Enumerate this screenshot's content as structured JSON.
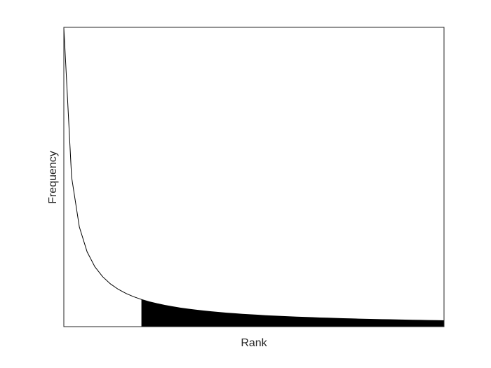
{
  "chart_data": {
    "type": "area",
    "title": "",
    "xlabel": "Rank",
    "ylabel": "Frequency",
    "xlim": [
      1,
      50
    ],
    "ylim": [
      0,
      1
    ],
    "grid": false,
    "tick_labels": false,
    "x": [
      1,
      2,
      3,
      4,
      5,
      6,
      7,
      8,
      9,
      10,
      11,
      12,
      13,
      14,
      15,
      16,
      17,
      18,
      19,
      20,
      21,
      22,
      23,
      24,
      25,
      26,
      27,
      28,
      29,
      30,
      31,
      32,
      33,
      34,
      35,
      36,
      37,
      38,
      39,
      40,
      41,
      42,
      43,
      44,
      45,
      46,
      47,
      48,
      49,
      50
    ],
    "series": [
      {
        "values": [
          1.0,
          0.5,
          0.333,
          0.25,
          0.2,
          0.167,
          0.143,
          0.125,
          0.111,
          0.1,
          0.0909,
          0.0833,
          0.0769,
          0.0714,
          0.0667,
          0.0625,
          0.0588,
          0.0556,
          0.0526,
          0.05,
          0.0476,
          0.0455,
          0.0435,
          0.0417,
          0.04,
          0.0385,
          0.037,
          0.0357,
          0.0345,
          0.0333,
          0.0323,
          0.0313,
          0.0303,
          0.0294,
          0.0286,
          0.0278,
          0.027,
          0.0263,
          0.0256,
          0.025,
          0.0244,
          0.0238,
          0.0233,
          0.0227,
          0.0222,
          0.0217,
          0.0213,
          0.0208,
          0.0204,
          0.02
        ],
        "filled_from_x": 11,
        "fill_color": "#000000",
        "line_color": "#000000"
      }
    ]
  }
}
